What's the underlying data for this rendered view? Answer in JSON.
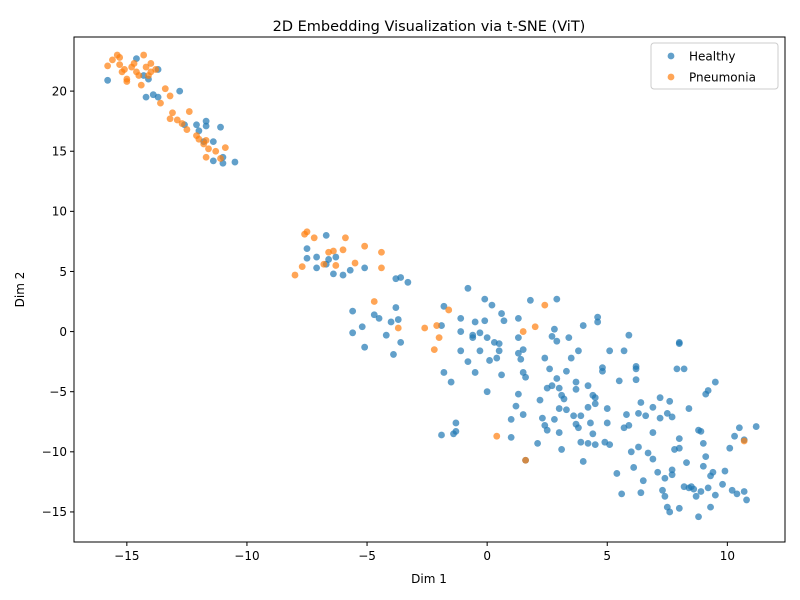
{
  "chart_data": {
    "type": "scatter",
    "title": "2D Embedding Visualization via t-SNE (ViT)",
    "xlabel": "Dim 1",
    "ylabel": "Dim 2",
    "xlim": [
      -17.2,
      12.4
    ],
    "ylim": [
      -17.5,
      24.5
    ],
    "xticks": [
      -15,
      -10,
      -5,
      0,
      5,
      10
    ],
    "yticks": [
      -15,
      -10,
      -5,
      0,
      5,
      10,
      15,
      20
    ],
    "grid": false,
    "legend_position": "top-right",
    "series": [
      {
        "name": "Healthy",
        "color": "#1f77b4",
        "points": [
          [
            -15.8,
            20.9
          ],
          [
            -14.6,
            22.7
          ],
          [
            -14.3,
            21.3
          ],
          [
            -14.1,
            21.0
          ],
          [
            -14.2,
            19.5
          ],
          [
            -13.9,
            19.7
          ],
          [
            -13.7,
            19.5
          ],
          [
            -13.7,
            21.8
          ],
          [
            -12.8,
            20.0
          ],
          [
            -12.6,
            17.2
          ],
          [
            -12.1,
            17.2
          ],
          [
            -12.0,
            16.7
          ],
          [
            -11.8,
            15.8
          ],
          [
            -11.7,
            17.5
          ],
          [
            -11.7,
            17.1
          ],
          [
            -11.4,
            15.8
          ],
          [
            -11.1,
            17.0
          ],
          [
            -11.4,
            14.2
          ],
          [
            -11.0,
            14.5
          ],
          [
            -11.0,
            14.0
          ],
          [
            -10.5,
            14.1
          ],
          [
            -7.5,
            6.9
          ],
          [
            -7.5,
            6.1
          ],
          [
            -7.1,
            6.2
          ],
          [
            -7.1,
            5.3
          ],
          [
            -6.7,
            8.0
          ],
          [
            -6.7,
            5.6
          ],
          [
            -6.6,
            6.0
          ],
          [
            -6.4,
            4.8
          ],
          [
            -6.3,
            6.2
          ],
          [
            -6.0,
            4.7
          ],
          [
            -5.7,
            5.1
          ],
          [
            -5.1,
            5.3
          ],
          [
            -3.8,
            4.4
          ],
          [
            -3.6,
            4.5
          ],
          [
            -3.3,
            4.1
          ],
          [
            -5.6,
            1.7
          ],
          [
            -5.6,
            -0.1
          ],
          [
            -5.2,
            0.4
          ],
          [
            -5.1,
            -1.3
          ],
          [
            -4.7,
            1.4
          ],
          [
            -4.5,
            1.1
          ],
          [
            -4.2,
            -0.3
          ],
          [
            -4.0,
            0.8
          ],
          [
            -3.9,
            -1.9
          ],
          [
            -3.8,
            2.0
          ],
          [
            -3.7,
            1.0
          ],
          [
            -3.6,
            -0.9
          ],
          [
            -1.8,
            2.1
          ],
          [
            -1.9,
            0.5
          ],
          [
            -1.8,
            -3.4
          ],
          [
            -1.5,
            -4.2
          ],
          [
            -1.9,
            -8.6
          ],
          [
            -1.4,
            -8.5
          ],
          [
            -1.3,
            -8.3
          ],
          [
            -1.3,
            -7.6
          ],
          [
            -1.1,
            1.1
          ],
          [
            -1.1,
            -1.6
          ],
          [
            -1.1,
            0.0
          ],
          [
            -0.8,
            3.6
          ],
          [
            -0.8,
            -2.5
          ],
          [
            -0.6,
            -0.5
          ],
          [
            -0.6,
            -0.3
          ],
          [
            -0.5,
            -3.4
          ],
          [
            -0.5,
            0.8
          ],
          [
            -0.3,
            -1.6
          ],
          [
            -0.3,
            -0.1
          ],
          [
            -0.1,
            2.7
          ],
          [
            -0.1,
            0.9
          ],
          [
            0.0,
            -5.0
          ],
          [
            0.0,
            -0.5
          ],
          [
            0.1,
            -2.4
          ],
          [
            0.2,
            2.2
          ],
          [
            0.3,
            -0.9
          ],
          [
            0.4,
            -2.2
          ],
          [
            0.5,
            -1.0
          ],
          [
            0.5,
            -1.6
          ],
          [
            0.6,
            1.5
          ],
          [
            0.6,
            -3.6
          ],
          [
            0.7,
            0.9
          ],
          [
            1.0,
            -7.3
          ],
          [
            1.0,
            -8.8
          ],
          [
            1.3,
            1.1
          ],
          [
            1.3,
            -0.5
          ],
          [
            1.3,
            -1.8
          ],
          [
            1.4,
            -2.3
          ],
          [
            1.5,
            -1.5
          ],
          [
            1.5,
            -3.4
          ],
          [
            1.6,
            -3.8
          ],
          [
            1.6,
            -10.7
          ],
          [
            1.8,
            2.6
          ],
          [
            1.2,
            -6.2
          ],
          [
            1.3,
            -5.2
          ],
          [
            1.5,
            -6.9
          ],
          [
            2.1,
            -9.3
          ],
          [
            2.2,
            -5.7
          ],
          [
            2.3,
            -7.2
          ],
          [
            2.4,
            -2.2
          ],
          [
            2.4,
            -7.8
          ],
          [
            2.5,
            -4.7
          ],
          [
            2.5,
            -8.2
          ],
          [
            2.6,
            -3.1
          ],
          [
            2.7,
            -4.5
          ],
          [
            2.7,
            -0.4
          ],
          [
            2.8,
            0.2
          ],
          [
            2.8,
            -7.3
          ],
          [
            2.9,
            2.7
          ],
          [
            2.9,
            -3.9
          ],
          [
            2.9,
            -0.8
          ],
          [
            3.0,
            -4.7
          ],
          [
            3.0,
            -6.4
          ],
          [
            3.0,
            -8.4
          ],
          [
            3.1,
            -9.8
          ],
          [
            3.1,
            -5.3
          ],
          [
            3.2,
            -5.6
          ],
          [
            3.3,
            -3.3
          ],
          [
            3.3,
            -6.5
          ],
          [
            3.4,
            -0.5
          ],
          [
            3.5,
            -2.2
          ],
          [
            3.6,
            -7.0
          ],
          [
            3.7,
            -4.2
          ],
          [
            3.7,
            -4.8
          ],
          [
            3.7,
            -7.7
          ],
          [
            3.8,
            -8.0
          ],
          [
            3.8,
            -1.6
          ],
          [
            3.9,
            -9.2
          ],
          [
            3.9,
            -7.0
          ],
          [
            4.0,
            0.5
          ],
          [
            4.0,
            -10.8
          ],
          [
            4.2,
            -4.5
          ],
          [
            4.2,
            -6.3
          ],
          [
            4.2,
            -9.3
          ],
          [
            4.3,
            -7.6
          ],
          [
            4.4,
            -5.3
          ],
          [
            4.4,
            -8.5
          ],
          [
            4.5,
            -5.5
          ],
          [
            4.5,
            -6.0
          ],
          [
            4.5,
            -9.4
          ],
          [
            4.6,
            0.8
          ],
          [
            4.6,
            1.2
          ],
          [
            4.8,
            -3.0
          ],
          [
            4.8,
            -3.3
          ],
          [
            4.9,
            -9.2
          ],
          [
            5.0,
            -6.4
          ],
          [
            5.0,
            -7.6
          ],
          [
            5.1,
            -9.4
          ],
          [
            5.1,
            -1.6
          ],
          [
            5.4,
            -11.8
          ],
          [
            5.5,
            -4.1
          ],
          [
            5.6,
            -13.5
          ],
          [
            5.7,
            -8.0
          ],
          [
            5.7,
            -1.6
          ],
          [
            5.8,
            -6.9
          ],
          [
            5.9,
            -7.8
          ],
          [
            5.9,
            -0.3
          ],
          [
            6.0,
            -10.0
          ],
          [
            6.1,
            -11.3
          ],
          [
            6.2,
            -2.9
          ],
          [
            6.2,
            -3.1
          ],
          [
            6.2,
            -4.0
          ],
          [
            6.3,
            -6.8
          ],
          [
            6.3,
            -9.6
          ],
          [
            6.4,
            -5.9
          ],
          [
            6.4,
            -13.4
          ],
          [
            6.5,
            -12.4
          ],
          [
            6.6,
            -7.0
          ],
          [
            6.7,
            -10.1
          ],
          [
            6.9,
            -6.3
          ],
          [
            6.9,
            -8.4
          ],
          [
            6.9,
            -10.6
          ],
          [
            7.1,
            -11.7
          ],
          [
            7.2,
            -5.5
          ],
          [
            7.2,
            -7.2
          ],
          [
            7.3,
            -13.2
          ],
          [
            7.4,
            -12.2
          ],
          [
            7.4,
            -13.7
          ],
          [
            7.5,
            -14.6
          ],
          [
            7.5,
            -6.8
          ],
          [
            7.6,
            -5.8
          ],
          [
            7.6,
            -15.0
          ],
          [
            7.7,
            -11.5
          ],
          [
            7.7,
            -7.1
          ],
          [
            7.7,
            -11.9
          ],
          [
            7.8,
            -9.8
          ],
          [
            7.9,
            -3.1
          ],
          [
            8.0,
            -1.0
          ],
          [
            8.0,
            -0.9
          ],
          [
            8.0,
            -9.7
          ],
          [
            8.0,
            -8.9
          ],
          [
            8.0,
            -14.7
          ],
          [
            8.2,
            -12.9
          ],
          [
            8.2,
            -3.1
          ],
          [
            8.3,
            -10.9
          ],
          [
            8.4,
            -13.0
          ],
          [
            8.4,
            -6.4
          ],
          [
            8.5,
            -12.9
          ],
          [
            8.6,
            -13.1
          ],
          [
            8.7,
            -13.7
          ],
          [
            8.8,
            -8.2
          ],
          [
            8.8,
            -15.4
          ],
          [
            8.9,
            -13.3
          ],
          [
            8.9,
            -8.3
          ],
          [
            9.0,
            -11.2
          ],
          [
            9.0,
            -9.3
          ],
          [
            9.1,
            -10.4
          ],
          [
            9.1,
            -5.2
          ],
          [
            9.2,
            -4.9
          ],
          [
            9.2,
            -13.0
          ],
          [
            9.3,
            -14.6
          ],
          [
            9.3,
            -12.0
          ],
          [
            9.4,
            -11.7
          ],
          [
            9.5,
            -4.2
          ],
          [
            9.5,
            -13.6
          ],
          [
            9.8,
            -12.7
          ],
          [
            9.9,
            -11.6
          ],
          [
            10.1,
            -9.7
          ],
          [
            10.2,
            -13.2
          ],
          [
            10.3,
            -8.7
          ],
          [
            10.4,
            -13.5
          ],
          [
            10.5,
            -8.0
          ],
          [
            10.7,
            -13.3
          ],
          [
            10.7,
            -9.0
          ],
          [
            10.8,
            -14.0
          ],
          [
            11.2,
            -7.9
          ]
        ]
      },
      {
        "name": "Pneumonia",
        "color": "#ff7f0e",
        "points": [
          [
            -15.8,
            22.1
          ],
          [
            -15.6,
            22.6
          ],
          [
            -15.4,
            23.0
          ],
          [
            -15.3,
            22.8
          ],
          [
            -15.3,
            22.2
          ],
          [
            -15.2,
            21.6
          ],
          [
            -15.1,
            21.8
          ],
          [
            -15.0,
            21.0
          ],
          [
            -15.0,
            20.8
          ],
          [
            -14.8,
            22.0
          ],
          [
            -14.7,
            22.3
          ],
          [
            -14.6,
            21.6
          ],
          [
            -14.5,
            21.3
          ],
          [
            -14.3,
            23.0
          ],
          [
            -14.4,
            20.5
          ],
          [
            -14.2,
            22.0
          ],
          [
            -14.1,
            21.3
          ],
          [
            -14.0,
            21.6
          ],
          [
            -14.0,
            22.3
          ],
          [
            -13.8,
            21.8
          ],
          [
            -13.6,
            19.0
          ],
          [
            -13.4,
            20.2
          ],
          [
            -13.2,
            19.6
          ],
          [
            -13.2,
            17.7
          ],
          [
            -13.1,
            18.2
          ],
          [
            -12.9,
            17.6
          ],
          [
            -12.7,
            17.3
          ],
          [
            -12.4,
            18.3
          ],
          [
            -12.5,
            16.8
          ],
          [
            -12.1,
            16.3
          ],
          [
            -12.0,
            16.0
          ],
          [
            -11.8,
            15.6
          ],
          [
            -11.7,
            15.9
          ],
          [
            -11.6,
            15.2
          ],
          [
            -11.7,
            14.5
          ],
          [
            -11.3,
            15.0
          ],
          [
            -11.1,
            14.4
          ],
          [
            -10.9,
            15.3
          ],
          [
            -8.0,
            4.7
          ],
          [
            -7.7,
            5.4
          ],
          [
            -7.6,
            8.1
          ],
          [
            -7.5,
            8.3
          ],
          [
            -7.2,
            7.8
          ],
          [
            -6.8,
            5.6
          ],
          [
            -6.6,
            6.6
          ],
          [
            -6.4,
            6.7
          ],
          [
            -6.3,
            5.5
          ],
          [
            -6.0,
            6.8
          ],
          [
            -5.9,
            7.8
          ],
          [
            -5.5,
            5.7
          ],
          [
            -5.1,
            7.1
          ],
          [
            -4.7,
            2.5
          ],
          [
            -4.4,
            6.6
          ],
          [
            -4.4,
            5.3
          ],
          [
            -3.7,
            0.3
          ],
          [
            -2.6,
            0.3
          ],
          [
            -2.2,
            -1.5
          ],
          [
            -2.1,
            0.5
          ],
          [
            -2.0,
            -0.5
          ],
          [
            -1.6,
            1.8
          ],
          [
            0.4,
            -8.7
          ],
          [
            1.5,
            0.0
          ],
          [
            1.6,
            -10.7
          ],
          [
            2.0,
            0.4
          ],
          [
            2.4,
            2.2
          ],
          [
            10.7,
            -9.1
          ]
        ]
      }
    ]
  }
}
